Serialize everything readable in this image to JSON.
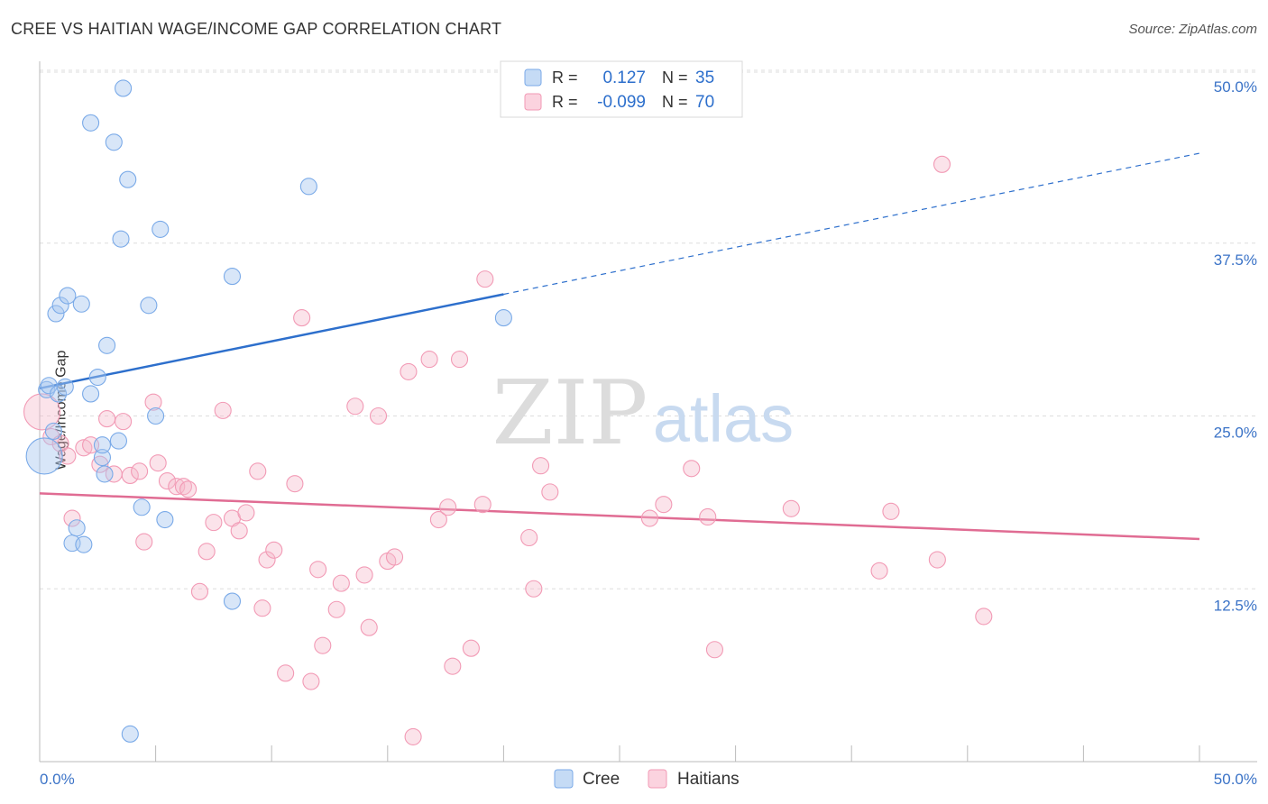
{
  "title": "CREE VS HAITIAN WAGE/INCOME GAP CORRELATION CHART",
  "source": "Source: ZipAtlas.com",
  "watermark": {
    "zip": "ZIP",
    "atlas": "atlas"
  },
  "legend_stats": [
    {
      "r_label": "R =",
      "r_value": "0.127",
      "n_label": "N =",
      "n_value": "35",
      "color": "#a8c8f0"
    },
    {
      "r_label": "R =",
      "r_value": "-0.099",
      "n_label": "N =",
      "n_value": "70",
      "color": "#f5b8cb"
    }
  ],
  "chart_data": {
    "type": "scatter",
    "title": "CREE VS HAITIAN WAGE/INCOME GAP CORRELATION CHART",
    "xlabel": "",
    "ylabel": "Wage/Income Gap",
    "xlim": [
      0,
      50
    ],
    "ylim": [
      0,
      50
    ],
    "x_tick_labels": [
      "0.0%",
      "50.0%"
    ],
    "y_tick_labels": [
      "12.5%",
      "25.0%",
      "37.5%",
      "50.0%"
    ],
    "y_ticks": [
      12.5,
      25.0,
      37.5,
      50.0
    ],
    "grid": "horizontal dashed",
    "legend_position": "bottom-center",
    "series": [
      {
        "name": "Cree",
        "color": "#7aaae8",
        "line_color": "#2d6fcc",
        "trend": {
          "x0": 0,
          "y0": 27.0,
          "x1": 20,
          "y1": 33.8,
          "x_ext": 50,
          "y_ext": 44.0
        },
        "points": [
          [
            0.2,
            22.1,
            "l"
          ],
          [
            0.3,
            26.9
          ],
          [
            0.4,
            27.2
          ],
          [
            0.6,
            23.9
          ],
          [
            0.7,
            32.4
          ],
          [
            0.8,
            26.6
          ],
          [
            0.9,
            33.0
          ],
          [
            1.1,
            27.1
          ],
          [
            1.2,
            33.7
          ],
          [
            1.4,
            15.8
          ],
          [
            1.6,
            16.9
          ],
          [
            1.8,
            33.1
          ],
          [
            1.9,
            15.7
          ],
          [
            2.2,
            26.6
          ],
          [
            2.5,
            27.8
          ],
          [
            2.7,
            22.0
          ],
          [
            2.8,
            20.8
          ],
          [
            2.9,
            30.1
          ],
          [
            3.2,
            44.8
          ],
          [
            3.4,
            23.2
          ],
          [
            3.5,
            37.8
          ],
          [
            3.6,
            48.7
          ],
          [
            3.8,
            42.1
          ],
          [
            3.9,
            2.0
          ],
          [
            4.4,
            18.4
          ],
          [
            4.7,
            33.0
          ],
          [
            5.0,
            25.0
          ],
          [
            5.2,
            38.5
          ],
          [
            5.4,
            17.5
          ],
          [
            2.2,
            46.2
          ],
          [
            8.3,
            35.1
          ],
          [
            8.3,
            11.6
          ],
          [
            11.6,
            41.6
          ],
          [
            20.0,
            32.1
          ],
          [
            2.7,
            22.9
          ]
        ]
      },
      {
        "name": "Haitians",
        "color": "#f29ab5",
        "line_color": "#e06c93",
        "trend": {
          "x0": 0,
          "y0": 19.4,
          "x1": 50,
          "y1": 16.1
        },
        "points": [
          [
            0.1,
            25.3,
            "l"
          ],
          [
            0.5,
            23.5
          ],
          [
            0.9,
            23.0
          ],
          [
            1.2,
            22.1
          ],
          [
            1.4,
            17.6
          ],
          [
            1.9,
            22.7
          ],
          [
            2.2,
            22.9
          ],
          [
            2.6,
            21.5
          ],
          [
            2.9,
            24.8
          ],
          [
            3.2,
            20.8
          ],
          [
            3.6,
            24.6
          ],
          [
            3.9,
            20.7
          ],
          [
            4.3,
            21.0
          ],
          [
            4.5,
            15.9
          ],
          [
            4.9,
            26.0
          ],
          [
            5.1,
            21.6
          ],
          [
            5.5,
            20.3
          ],
          [
            5.9,
            19.9
          ],
          [
            6.2,
            19.9
          ],
          [
            6.4,
            19.7
          ],
          [
            6.9,
            12.3
          ],
          [
            7.2,
            15.2
          ],
          [
            7.5,
            17.3
          ],
          [
            7.9,
            25.4
          ],
          [
            8.3,
            17.6
          ],
          [
            8.6,
            16.7
          ],
          [
            8.9,
            18.0
          ],
          [
            9.4,
            21.0
          ],
          [
            9.6,
            11.1
          ],
          [
            9.8,
            14.6
          ],
          [
            10.1,
            15.3
          ],
          [
            10.6,
            6.4
          ],
          [
            11.0,
            20.1
          ],
          [
            11.3,
            32.1
          ],
          [
            11.7,
            5.8
          ],
          [
            12.0,
            13.9
          ],
          [
            12.2,
            8.4
          ],
          [
            12.8,
            11.0
          ],
          [
            13.0,
            12.9
          ],
          [
            13.6,
            25.7
          ],
          [
            14.0,
            13.5
          ],
          [
            14.2,
            9.7
          ],
          [
            14.6,
            25.0
          ],
          [
            15.0,
            14.5
          ],
          [
            15.3,
            14.8
          ],
          [
            15.9,
            28.2
          ],
          [
            16.1,
            1.8
          ],
          [
            16.8,
            29.1
          ],
          [
            17.2,
            17.5
          ],
          [
            17.6,
            18.4
          ],
          [
            17.8,
            6.9
          ],
          [
            18.1,
            29.1
          ],
          [
            18.6,
            8.2
          ],
          [
            19.1,
            18.6
          ],
          [
            19.2,
            34.9
          ],
          [
            21.1,
            16.2
          ],
          [
            21.3,
            12.5
          ],
          [
            21.6,
            21.4
          ],
          [
            22.0,
            19.5
          ],
          [
            26.3,
            17.6
          ],
          [
            26.9,
            18.6
          ],
          [
            28.1,
            21.2
          ],
          [
            28.8,
            17.7
          ],
          [
            29.1,
            8.1
          ],
          [
            32.4,
            18.3
          ],
          [
            36.2,
            13.8
          ],
          [
            36.7,
            18.1
          ],
          [
            38.7,
            14.6
          ],
          [
            38.9,
            43.2
          ],
          [
            40.7,
            10.5
          ]
        ]
      }
    ]
  }
}
